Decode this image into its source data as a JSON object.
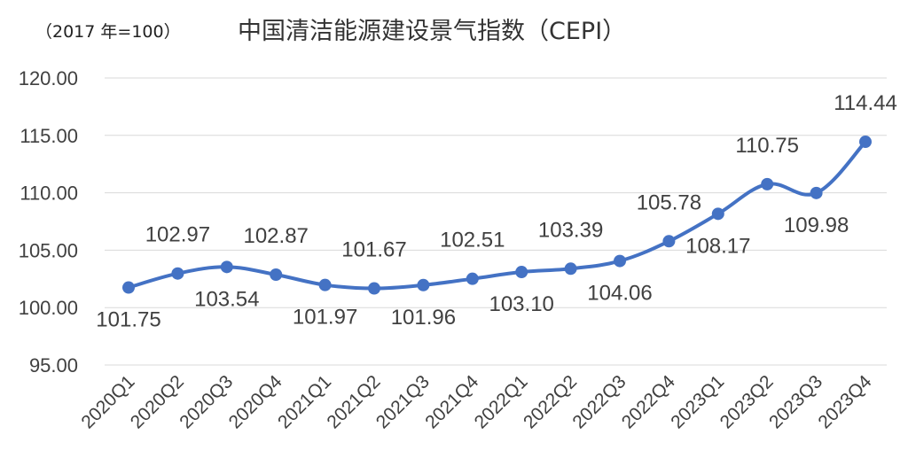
{
  "chart_data": {
    "type": "line",
    "title": "中国清洁能源建设景气指数（CEPI）",
    "subtitle": "（2017 年=100）",
    "categories": [
      "2020Q1",
      "2020Q2",
      "2020Q3",
      "2020Q4",
      "2021Q1",
      "2021Q2",
      "2021Q3",
      "2021Q4",
      "2022Q1",
      "2022Q2",
      "2022Q3",
      "2022Q4",
      "2023Q1",
      "2023Q2",
      "2023Q3",
      "2023Q4"
    ],
    "series": [
      {
        "values": [
          101.75,
          102.97,
          103.54,
          102.87,
          101.97,
          101.67,
          101.96,
          102.51,
          103.1,
          103.39,
          104.06,
          105.78,
          108.17,
          110.75,
          109.98,
          114.44
        ],
        "labels": [
          "101.75",
          "102.97",
          "103.54",
          "102.87",
          "101.97",
          "101.67",
          "101.96",
          "102.51",
          "103.10",
          "103.39",
          "104.06",
          "105.78",
          "108.17",
          "110.75",
          "109.98",
          "114.44"
        ],
        "label_positions": [
          "below",
          "above",
          "below",
          "above",
          "below",
          "above",
          "below",
          "above",
          "below",
          "above",
          "below",
          "above",
          "below",
          "above",
          "below",
          "above"
        ]
      }
    ],
    "ylim": [
      95,
      120
    ],
    "yticks": [
      "95.00",
      "100.00",
      "105.00",
      "110.00",
      "115.00",
      "120.00"
    ],
    "grid": true,
    "line_color": "#4472C4",
    "marker_color": "#4472C4",
    "grid_color": "#d9d9d9"
  }
}
